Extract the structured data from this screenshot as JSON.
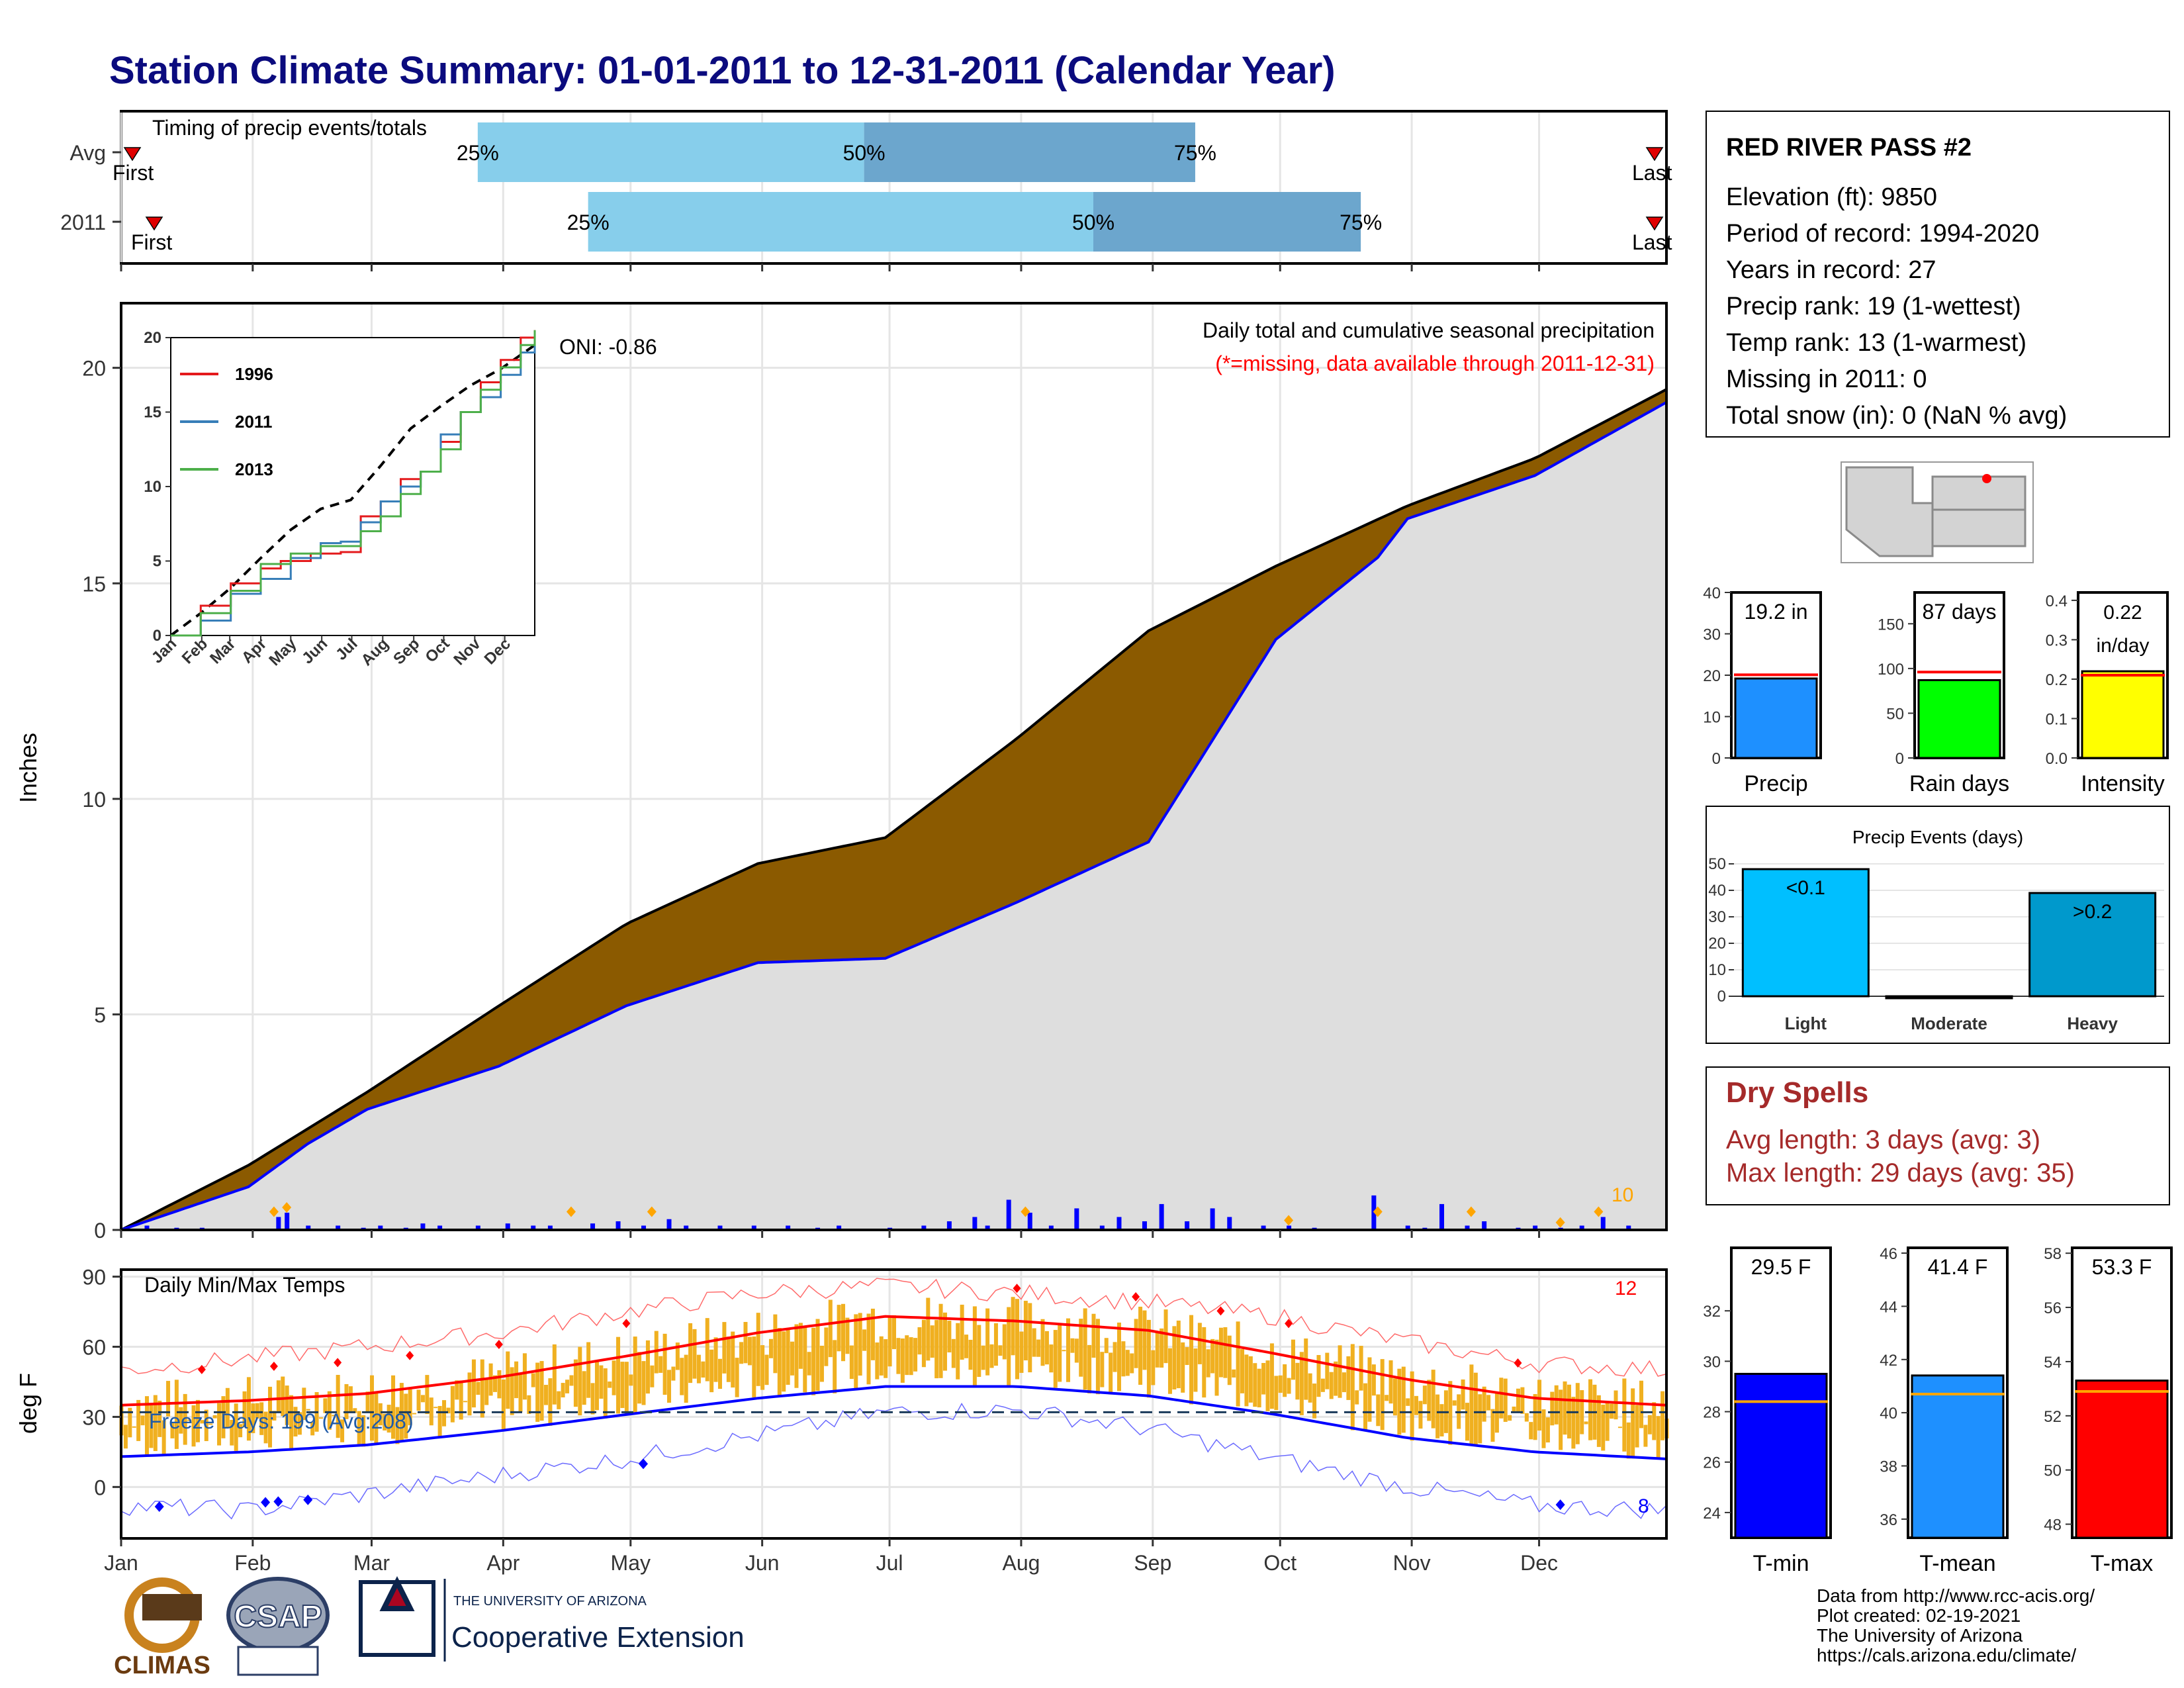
{
  "page": {
    "title": "Station Climate Summary: 01-01-2011 to 12-31-2011 (Calendar Year)"
  },
  "timing_panel": {
    "label": "Timing of precip events/totals",
    "rows": [
      {
        "name": "Avg",
        "first_label": "First",
        "last_label": "Last",
        "p25_label": "25%",
        "p50_label": "50%",
        "p75_label": "75%",
        "q25_doy": 85,
        "q50_doy": 176,
        "q75_doy": 254
      },
      {
        "name": "2011",
        "first_label": "First",
        "last_label": "Last",
        "p25_label": "25%",
        "p50_label": "50%",
        "p75_label": "75%",
        "q25_doy": 111,
        "q50_doy": 230,
        "q75_doy": 293
      }
    ]
  },
  "station_info": {
    "name": "RED RIVER PASS #2",
    "lines": [
      "Elevation (ft): 9850",
      "Period of record: 1994-2020",
      "Years in record: 27",
      "Precip rank: 19 (1-wettest)",
      "Temp rank: 13 (1-warmest)",
      "Missing in 2011: 0",
      "Total snow (in): 0 (NaN % avg)"
    ]
  },
  "chart_data": [
    {
      "type": "area",
      "panel": "Cumulative precipitation",
      "title": "Daily total and cumulative seasonal precipitation",
      "subtitle": "(*=missing, data available through 2011-12-31)",
      "ylabel": "Inches",
      "ylim": [
        0,
        21.5
      ],
      "yticks": [
        0,
        5,
        10,
        15,
        20
      ],
      "months": [
        "Jan",
        "Feb",
        "Mar",
        "Apr",
        "May",
        "Jun",
        "Jul",
        "Aug",
        "Sep",
        "Oct",
        "Nov",
        "Dec"
      ],
      "annotation": "ONI: -0.86",
      "extreme_count": "10",
      "avg_cumulative": {
        "doy": [
          1,
          31,
          59,
          90,
          120,
          151,
          181,
          212,
          243,
          273,
          304,
          334,
          365
        ],
        "values": [
          0,
          1.5,
          3.2,
          5.2,
          7.1,
          8.5,
          9.1,
          11.4,
          13.9,
          15.4,
          16.8,
          17.9,
          19.5
        ]
      },
      "year_cumulative": {
        "doy": [
          1,
          31,
          45,
          59,
          90,
          120,
          151,
          181,
          212,
          243,
          273,
          297,
          304,
          334,
          365
        ],
        "values": [
          0,
          1.0,
          2.0,
          2.8,
          3.8,
          5.2,
          6.2,
          6.3,
          7.6,
          9.0,
          13.7,
          15.6,
          16.5,
          17.5,
          19.2
        ]
      },
      "daily_precip_doy": [
        7,
        14,
        20,
        38,
        40,
        45,
        52,
        58,
        62,
        68,
        72,
        76,
        85,
        92,
        98,
        102,
        112,
        118,
        124,
        130,
        134,
        142,
        150,
        158,
        165,
        170,
        182,
        190,
        196,
        202,
        205,
        210,
        215,
        220,
        226,
        232,
        236,
        242,
        246,
        252,
        258,
        262,
        270,
        276,
        282,
        296,
        304,
        308,
        312,
        318,
        322,
        330,
        334,
        340,
        345,
        350,
        356
      ],
      "daily_precip_values": [
        0.1,
        0.05,
        0.05,
        0.3,
        0.4,
        0.1,
        0.1,
        0.05,
        0.1,
        0.05,
        0.15,
        0.1,
        0.1,
        0.15,
        0.1,
        0.1,
        0.15,
        0.2,
        0.1,
        0.25,
        0.1,
        0.1,
        0.1,
        0.1,
        0.05,
        0.1,
        0.05,
        0.1,
        0.2,
        0.3,
        0.1,
        0.7,
        0.4,
        0.1,
        0.5,
        0.1,
        0.3,
        0.2,
        0.6,
        0.2,
        0.5,
        0.3,
        0.1,
        0.1,
        0.05,
        0.8,
        0.1,
        0.05,
        0.6,
        0.1,
        0.2,
        0.05,
        0.1,
        0.05,
        0.1,
        0.3,
        0.1
      ],
      "extreme_markers_doy": [
        37,
        40,
        107,
        126,
        214,
        276,
        297,
        319,
        340,
        349
      ]
    },
    {
      "type": "line",
      "panel": "Inset cumulative comparison",
      "ylim": [
        0,
        20
      ],
      "yticks": [
        0,
        5,
        10,
        15,
        20
      ],
      "months": [
        "Jan",
        "Feb",
        "Mar",
        "Apr",
        "May",
        "Jun",
        "Jul",
        "Aug",
        "Sep",
        "Oct",
        "Nov",
        "Dec"
      ],
      "series": [
        {
          "name": "1996",
          "color": "#e41a1c",
          "x": [
            0,
            30,
            60,
            90,
            110,
            140,
            170,
            190,
            210,
            230,
            250,
            270,
            290,
            310,
            330,
            350,
            364
          ],
          "y": [
            0,
            2,
            3.5,
            4.5,
            5,
            5.5,
            5.6,
            8,
            9,
            10.5,
            11,
            13,
            15,
            17,
            18.5,
            20,
            20.5
          ]
        },
        {
          "name": "2011",
          "color": "#377eb8",
          "x": [
            0,
            30,
            60,
            90,
            120,
            150,
            170,
            190,
            210,
            230,
            250,
            270,
            290,
            310,
            330,
            350,
            364
          ],
          "y": [
            0,
            1,
            2.8,
            3.8,
            5.2,
            6.2,
            6.3,
            7.6,
            9,
            10,
            11,
            13.5,
            15,
            16,
            17.5,
            19,
            20
          ]
        },
        {
          "name": "2013",
          "color": "#4daf4a",
          "x": [
            0,
            30,
            60,
            90,
            120,
            150,
            170,
            190,
            210,
            230,
            250,
            270,
            290,
            310,
            330,
            350,
            364
          ],
          "y": [
            0,
            1.5,
            3,
            4.8,
            5.5,
            6,
            6,
            7,
            8,
            9.5,
            11,
            12.5,
            15,
            16.5,
            18,
            19.5,
            20.5
          ]
        }
      ],
      "average_dashed": {
        "x": [
          0,
          30,
          60,
          90,
          120,
          150,
          180,
          210,
          240,
          270,
          300,
          330,
          364
        ],
        "y": [
          0,
          1.5,
          3.2,
          5.2,
          7.1,
          8.5,
          9.1,
          11.4,
          13.9,
          15.4,
          16.8,
          17.9,
          19.5
        ]
      }
    },
    {
      "type": "line",
      "panel": "Daily Min/Max Temps",
      "title": "Daily Min/Max Temps",
      "ylabel": "deg F",
      "ylim": [
        -22,
        93
      ],
      "yticks": [
        0,
        30,
        60,
        90
      ],
      "months": [
        "Jan",
        "Feb",
        "Mar",
        "Apr",
        "May",
        "Jun",
        "Jul",
        "Aug",
        "Sep",
        "Oct",
        "Nov",
        "Dec"
      ],
      "freeze_label": "Freeze Days: 199 (Avg:208)",
      "freeze_line": 32,
      "high_extreme_count": "12",
      "low_extreme_count": "8",
      "avg_max": {
        "doy": [
          1,
          31,
          59,
          90,
          120,
          151,
          181,
          212,
          243,
          273,
          304,
          334,
          365
        ],
        "values": [
          35,
          37,
          40,
          47,
          56,
          66,
          73,
          71,
          67,
          57,
          46,
          38,
          35
        ]
      },
      "avg_min": {
        "doy": [
          1,
          31,
          59,
          90,
          120,
          151,
          181,
          212,
          243,
          273,
          304,
          334,
          365
        ],
        "values": [
          13,
          15,
          18,
          24,
          31,
          38,
          43,
          43,
          39,
          31,
          21,
          15,
          12
        ]
      },
      "record_max": {
        "doy": [
          1,
          31,
          59,
          90,
          120,
          151,
          181,
          212,
          243,
          273,
          304,
          334,
          365
        ],
        "values": [
          50,
          55,
          60,
          66,
          75,
          83,
          86,
          83,
          79,
          73,
          62,
          53,
          50
        ]
      },
      "record_min": {
        "doy": [
          1,
          31,
          59,
          90,
          120,
          151,
          181,
          212,
          243,
          273,
          304,
          334,
          365
        ],
        "values": [
          -8,
          -10,
          -3,
          5,
          12,
          22,
          32,
          33,
          25,
          12,
          0,
          -8,
          -10
        ]
      }
    },
    {
      "type": "bar",
      "panel": "Precip",
      "categories": [
        "Precip"
      ],
      "values": [
        19.2
      ],
      "value_label": "19.2 in",
      "average": 20.1,
      "ylim": [
        0,
        40
      ],
      "yticks": [
        0,
        10,
        20,
        30,
        40
      ],
      "color": "#1e90ff"
    },
    {
      "type": "bar",
      "panel": "Rain days",
      "categories": [
        "Rain days"
      ],
      "values": [
        87
      ],
      "value_label": "87 days",
      "average": 96,
      "ylim": [
        0,
        185
      ],
      "yticks": [
        0,
        50,
        100,
        150
      ],
      "color": "#00ff00"
    },
    {
      "type": "bar",
      "panel": "Intensity",
      "categories": [
        "Intensity"
      ],
      "values": [
        0.22
      ],
      "value_label": [
        "0.22",
        "in/day"
      ],
      "average": 0.21,
      "ylim": [
        0,
        0.42
      ],
      "yticks": [
        "0.0",
        "0.1",
        "0.2",
        "0.3",
        "0.4"
      ],
      "color": "#ffff00"
    },
    {
      "type": "bar",
      "panel": "Precip Events (days)",
      "title": "Precip Events (days)",
      "categories": [
        "Light",
        "Moderate",
        "Heavy"
      ],
      "values": [
        48,
        0,
        39
      ],
      "bar_labels": [
        "<0.1",
        "",
        ">0.2"
      ],
      "ylim": [
        0,
        50
      ],
      "yticks": [
        0,
        10,
        20,
        30,
        40,
        50
      ],
      "colors": [
        "#00bfff",
        "#0fb3e0",
        "#0099cc"
      ]
    },
    {
      "type": "bar",
      "panel": "T-min",
      "categories": [
        "T-min"
      ],
      "values": [
        29.5
      ],
      "value_label": "29.5 F",
      "average": 28.4,
      "ylim": [
        23,
        34.5
      ],
      "yticks": [
        24,
        26,
        28,
        30,
        32
      ],
      "color": "#0000ff"
    },
    {
      "type": "bar",
      "panel": "T-mean",
      "categories": [
        "T-mean"
      ],
      "values": [
        41.4
      ],
      "value_label": "41.4 F",
      "average": 40.7,
      "ylim": [
        35.3,
        46.2
      ],
      "yticks": [
        36,
        38,
        40,
        42,
        44,
        46
      ],
      "color": "#1e90ff"
    },
    {
      "type": "bar",
      "panel": "T-max",
      "categories": [
        "T-max"
      ],
      "values": [
        53.3
      ],
      "value_label": "53.3 F",
      "average": 52.9,
      "ylim": [
        47.5,
        58.2
      ],
      "yticks": [
        48,
        50,
        52,
        54,
        56,
        58
      ],
      "color": "#ff0000"
    }
  ],
  "dry_spells": {
    "title": "Dry Spells",
    "avg_length": "Avg length: 3 days (avg: 3)",
    "max_length": "Max length: 29 days (avg: 35)"
  },
  "footer": {
    "credits": [
      "Data from http://www.rcc-acis.org/",
      "Plot created: 02-19-2021",
      "The University of Arizona",
      "https://cals.arizona.edu/climate/"
    ],
    "logos": {
      "climas": "CLIMAS",
      "csap": "CSAP",
      "ua_small": "THE UNIVERSITY OF ARIZONA",
      "ua_big": "Cooperative Extension"
    }
  },
  "colors": {
    "title": "#0b0b7e",
    "deficit": "#8b5a00",
    "year_line": "#0000ff",
    "avg_max": "#ff0000",
    "avg_min": "#0000ff",
    "daily_range": "#f0b020",
    "timing_light": "#87ceeb",
    "timing_dark": "#6ca6cd"
  }
}
